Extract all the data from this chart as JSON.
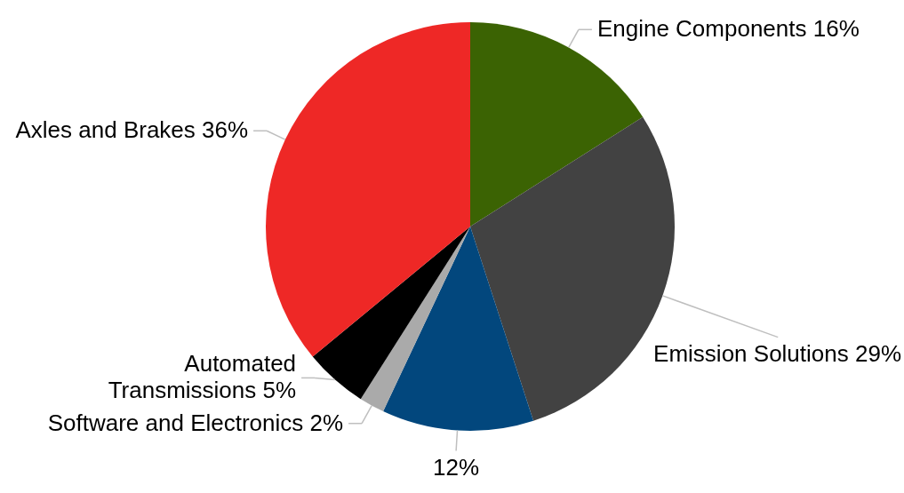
{
  "chart_data": {
    "type": "pie",
    "categories": [
      "Engine Components",
      "Emission Solutions",
      null,
      "Software and Electronics",
      "Automated Transmissions",
      "Axles and Brakes"
    ],
    "values": [
      16,
      29,
      12,
      2,
      5,
      36
    ],
    "colors": [
      "#3b6303",
      "#424242",
      "#02477d",
      "#aaaaaa",
      "#000000",
      "#ee2826"
    ],
    "value_labels": [
      "16%",
      "29%",
      "12%",
      "2%",
      "5%",
      "36%"
    ]
  }
}
